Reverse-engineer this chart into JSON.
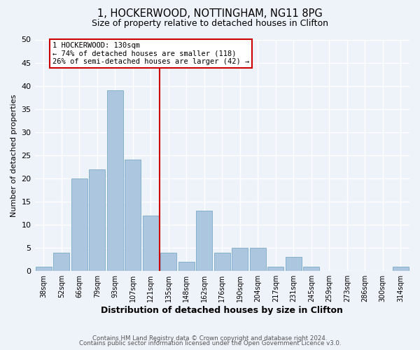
{
  "title": "1, HOCKERWOOD, NOTTINGHAM, NG11 8PG",
  "subtitle": "Size of property relative to detached houses in Clifton",
  "xlabel": "Distribution of detached houses by size in Clifton",
  "ylabel": "Number of detached properties",
  "bin_labels": [
    "38sqm",
    "52sqm",
    "66sqm",
    "79sqm",
    "93sqm",
    "107sqm",
    "121sqm",
    "135sqm",
    "148sqm",
    "162sqm",
    "176sqm",
    "190sqm",
    "204sqm",
    "217sqm",
    "231sqm",
    "245sqm",
    "259sqm",
    "273sqm",
    "286sqm",
    "300sqm",
    "314sqm"
  ],
  "bar_values": [
    1,
    4,
    20,
    22,
    39,
    24,
    12,
    4,
    2,
    13,
    4,
    5,
    5,
    1,
    3,
    1,
    0,
    0,
    0,
    0,
    1
  ],
  "bar_color": "#adc6e0",
  "bar_edge_color": "#7aaac8",
  "vline_x_index": 7,
  "vline_color": "#cc0000",
  "annotation_title": "1 HOCKERWOOD: 130sqm",
  "annotation_line1": "← 74% of detached houses are smaller (118)",
  "annotation_line2": "26% of semi-detached houses are larger (42) →",
  "annotation_box_edge": "#cc0000",
  "ylim": [
    0,
    50
  ],
  "yticks": [
    0,
    5,
    10,
    15,
    20,
    25,
    30,
    35,
    40,
    45,
    50
  ],
  "footer1": "Contains HM Land Registry data © Crown copyright and database right 2024.",
  "footer2": "Contains public sector information licensed under the Open Government Licence v3.0.",
  "bg_color": "#eef2f9",
  "grid_color": "#ffffff"
}
